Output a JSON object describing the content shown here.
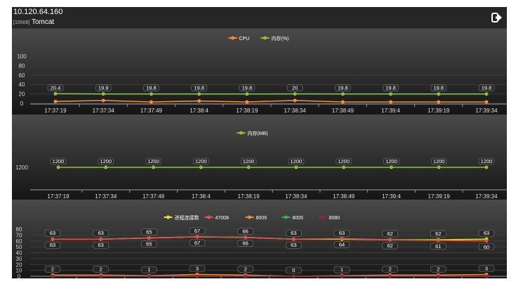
{
  "header": {
    "host": "10.120.64.160",
    "instance_id": "[15508]",
    "app_name": "Tomcat",
    "exit_icon": "sign-out-icon"
  },
  "colors": {
    "background": "#1b1b1b",
    "cpu": "#f08c3a",
    "memory_pct": "#8fc23a",
    "memory_mb": "#8fc23a",
    "threads": "#e6e61e",
    "port_47008": "#e05050",
    "port_8009": "#f08c3a",
    "port_8005": "#3cb44b",
    "port_8080": "#a01e3c"
  },
  "chart_data": [
    {
      "type": "line",
      "x": [
        "17:37:19",
        "17:37:34",
        "17:37:49",
        "17:38:4",
        "17:38:19",
        "17:38:34",
        "17:38:49",
        "17:39:4",
        "17:39:19",
        "17:39:34"
      ],
      "ylim": [
        0,
        100
      ],
      "yticks": [
        "0",
        "20",
        "40",
        "60",
        "80",
        "100"
      ],
      "grid": true,
      "legend": "top-center",
      "series": [
        {
          "name": "CPU",
          "color": "#f08c3a",
          "values": [
            4,
            6,
            3,
            5,
            3,
            6,
            3,
            3,
            3,
            3
          ],
          "labels": null
        },
        {
          "name": "内存(%)",
          "color": "#8fc23a",
          "values": [
            20.4,
            19.9,
            19.8,
            19.8,
            19.8,
            20,
            19.8,
            19.8,
            19.8,
            19.8
          ],
          "labels": [
            "20.4",
            "19.9",
            "19.8",
            "19.8",
            "19.8",
            "20",
            "19.8",
            "19.8",
            "19.8",
            "19.8"
          ]
        }
      ]
    },
    {
      "type": "line",
      "x": [
        "17:37:19",
        "17:37:34",
        "17:37:49",
        "17:38:4",
        "17:38:19",
        "17:38:34",
        "17:38:49",
        "17:39:4",
        "17:39:19",
        "17:39:34"
      ],
      "yticks": [
        "1200"
      ],
      "grid": false,
      "legend": "top-center",
      "series": [
        {
          "name": "内存(MB)",
          "color": "#8fc23a",
          "values": [
            1200,
            1200,
            1200,
            1200,
            1200,
            1200,
            1200,
            1200,
            1200,
            1200
          ],
          "labels": [
            "1200",
            "1200",
            "1200",
            "1200",
            "1200",
            "1200",
            "1200",
            "1200",
            "1200",
            "1200"
          ]
        }
      ]
    },
    {
      "type": "line",
      "x": [
        "17:37:19",
        "17:37:34",
        "17:37:49",
        "17:38:4",
        "17:38:19",
        "17:38:34",
        "17:38:49",
        "17:39:4",
        "17:39:19",
        "17:39:34"
      ],
      "ylim": [
        0,
        80
      ],
      "yticks": [
        "0",
        "10",
        "20",
        "30",
        "40",
        "50",
        "60",
        "70",
        "80"
      ],
      "grid": true,
      "legend": "top-center",
      "series": [
        {
          "name": "进程连接数",
          "color": "#e6e61e",
          "values": [
            63,
            63,
            65,
            67,
            66,
            63,
            63,
            62,
            62,
            63
          ],
          "labels": [
            "63",
            "63",
            "65",
            "67",
            "66",
            "63",
            "63",
            "62",
            "62",
            "63"
          ]
        },
        {
          "name": "47008",
          "color": "#e05050",
          "values": [
            63,
            63,
            65,
            67,
            66,
            63,
            64,
            62,
            61,
            60
          ],
          "labels": [
            "63",
            "63",
            "65",
            "67",
            "66",
            "63",
            "64",
            "62",
            "61",
            "60"
          ]
        },
        {
          "name": "8009",
          "color": "#f08c3a",
          "values": [
            2,
            2,
            1,
            3,
            2,
            0,
            1,
            2,
            2,
            3
          ],
          "labels": [
            "2",
            "2",
            "1",
            "3",
            "2",
            "0",
            "1",
            "2",
            "2",
            "3"
          ]
        },
        {
          "name": "8005",
          "color": "#3cb44b",
          "values": [
            0,
            0,
            0,
            0,
            0,
            0,
            0,
            0,
            0,
            0
          ],
          "labels": null
        },
        {
          "name": "8080",
          "color": "#a01e3c",
          "values": [
            0,
            0,
            0,
            0,
            0,
            0,
            0,
            0,
            0,
            0
          ],
          "labels": null
        }
      ]
    }
  ]
}
